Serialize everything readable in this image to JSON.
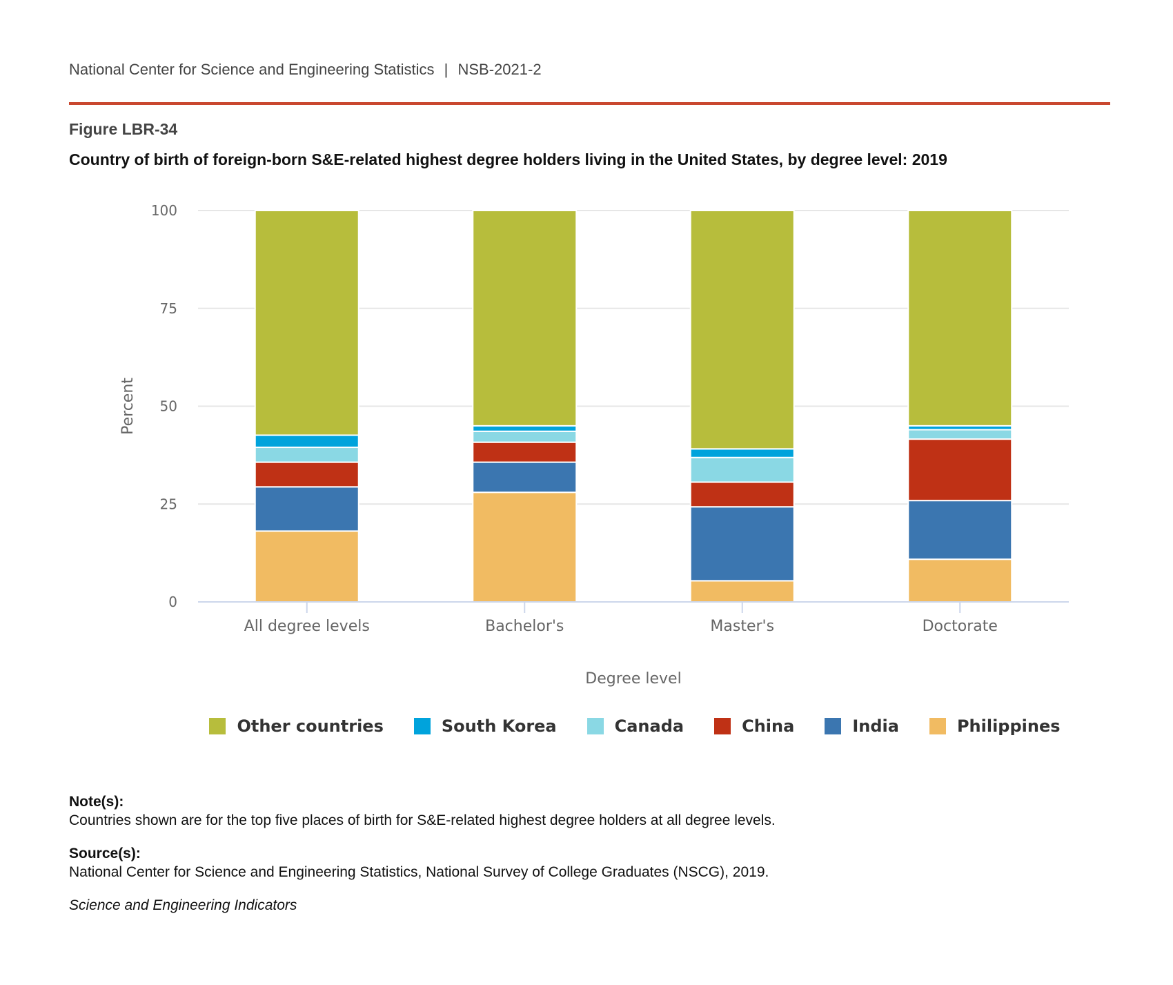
{
  "header": {
    "org": "National Center for Science and Engineering Statistics",
    "sep": "|",
    "report": "NSB-2021-2"
  },
  "figure_label": "Figure LBR-34",
  "colors": {
    "rule": "#c9472f"
  },
  "chart_data": {
    "type": "bar",
    "stacked": true,
    "title": "Country of birth of foreign-born S&E-related highest degree holders living in the United States, by degree level: 2019",
    "xlabel": "Degree level",
    "ylabel": "Percent",
    "ylim": [
      0,
      100
    ],
    "yticks": [
      0,
      25,
      50,
      75,
      100
    ],
    "grid": true,
    "legend_placement": "bottom",
    "categories": [
      "All degree levels",
      "Bachelor's",
      "Master's",
      "Doctorate"
    ],
    "series": [
      {
        "name": "Philippines",
        "color": "#f1bb62",
        "values": [
          18.1,
          28.0,
          5.4,
          10.9
        ]
      },
      {
        "name": "India",
        "color": "#3b76b0",
        "values": [
          11.3,
          7.7,
          18.9,
          15.0
        ]
      },
      {
        "name": "China",
        "color": "#bf3115",
        "values": [
          6.3,
          5.1,
          6.3,
          15.7
        ]
      },
      {
        "name": "Canada",
        "color": "#8ad8e4",
        "values": [
          3.8,
          2.8,
          6.3,
          2.4
        ]
      },
      {
        "name": "South Korea",
        "color": "#00a3dc",
        "values": [
          3.1,
          1.4,
          2.2,
          1.0
        ]
      },
      {
        "name": "Other countries",
        "color": "#b7bd3c",
        "values": [
          57.4,
          55.0,
          60.9,
          55.0
        ]
      }
    ]
  },
  "notes": {
    "heading": "Note(s):",
    "text": "Countries shown are for the top five places of birth for S&E-related highest degree holders at all degree levels."
  },
  "sources": {
    "heading": "Source(s):",
    "text": "National Center for Science and Engineering Statistics, National Survey of College Graduates (NSCG), 2019."
  },
  "footer": "Science and Engineering Indicators"
}
